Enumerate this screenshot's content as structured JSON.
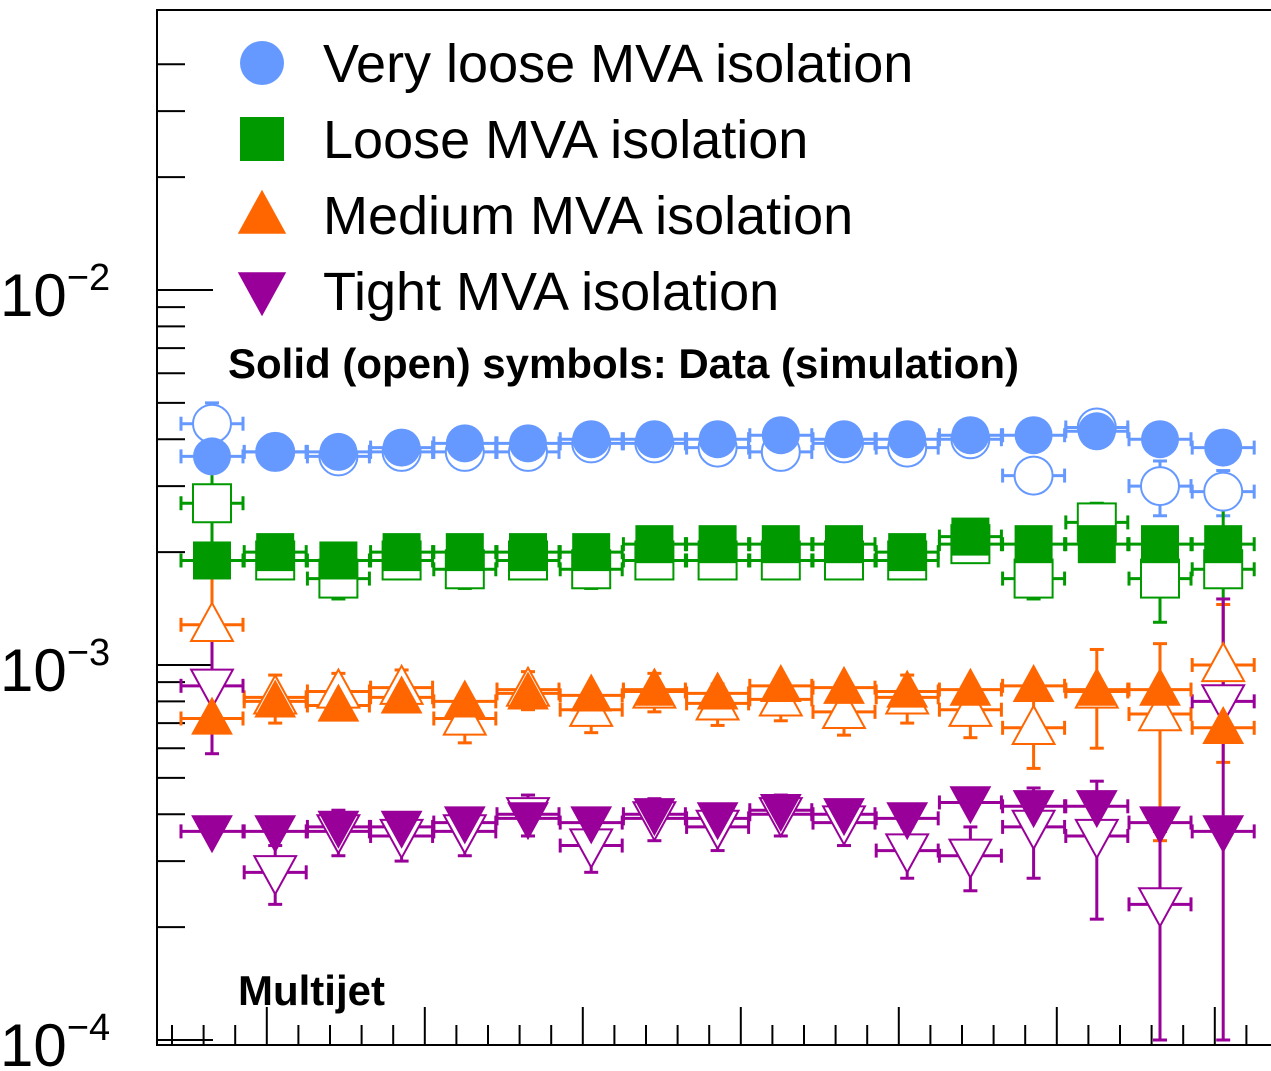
{
  "chart_data": {
    "type": "scatter",
    "yscale": "log",
    "ylim": [
      0.0001,
      0.045
    ],
    "x": [
      1,
      2,
      3,
      4,
      5,
      6,
      7,
      8,
      9,
      10,
      11,
      12,
      13,
      14,
      15,
      16,
      17
    ],
    "ytick_labels": [
      {
        "value": 0.01,
        "base": "10",
        "exp": "−2"
      },
      {
        "value": 0.001,
        "base": "10",
        "exp": "−3"
      },
      {
        "value": 0.0001,
        "base": "10",
        "exp": "−4"
      }
    ],
    "legend": {
      "placement": "top-left",
      "entries": [
        {
          "label": "Very loose MVA isolation",
          "marker": "circle",
          "color": "#6699ff"
        },
        {
          "label": "Loose MVA isolation",
          "marker": "square",
          "color": "#009900"
        },
        {
          "label": "Medium MVA isolation",
          "marker": "triangle-up",
          "color": "#ff6600"
        },
        {
          "label": "Tight MVA isolation",
          "marker": "triangle-down",
          "color": "#990099"
        }
      ]
    },
    "annotations": {
      "symbols_note": "Solid (open) symbols: Data (simulation)",
      "region": "Multijet"
    },
    "series": [
      {
        "name": "Very loose MVA isolation",
        "kind": "data",
        "color": "#6699ff",
        "marker": "circle",
        "filled": true,
        "values": [
          0.0036,
          0.0037,
          0.0037,
          0.0038,
          0.0039,
          0.0039,
          0.004,
          0.004,
          0.004,
          0.0041,
          0.004,
          0.004,
          0.0041,
          0.0041,
          0.0042,
          0.004,
          0.0038
        ]
      },
      {
        "name": "Very loose MVA isolation",
        "kind": "simulation",
        "color": "#6699ff",
        "marker": "circle",
        "filled": false,
        "values": [
          0.0044,
          0.0037,
          0.0036,
          0.0037,
          0.0037,
          0.0037,
          0.0039,
          0.0039,
          0.0038,
          0.0037,
          0.0039,
          0.0038,
          0.004,
          0.0032,
          0.0043,
          0.003,
          0.0029
        ],
        "yerr": [
          0.0006,
          0.0002,
          0.0002,
          0.0002,
          0.0002,
          0.0002,
          0.0002,
          0.0002,
          0.0002,
          0.0002,
          0.0002,
          0.0002,
          0.0002,
          0.0002,
          0.0002,
          0.0005,
          0.0004
        ]
      },
      {
        "name": "Loose MVA isolation",
        "kind": "data",
        "color": "#009900",
        "marker": "square",
        "filled": true,
        "values": [
          0.0019,
          0.002,
          0.0019,
          0.002,
          0.002,
          0.002,
          0.002,
          0.0021,
          0.0021,
          0.0021,
          0.0021,
          0.002,
          0.0022,
          0.0021,
          0.0021,
          0.0021,
          0.0021
        ]
      },
      {
        "name": "Loose MVA isolation",
        "kind": "simulation",
        "color": "#009900",
        "marker": "square",
        "filled": false,
        "values": [
          0.0027,
          0.0019,
          0.0017,
          0.0019,
          0.0018,
          0.0019,
          0.0018,
          0.0019,
          0.0019,
          0.0019,
          0.0019,
          0.0019,
          0.0021,
          0.0017,
          0.0024,
          0.0017,
          0.0018
        ],
        "yerr": [
          0.0006,
          0.0002,
          0.0002,
          0.0002,
          0.0002,
          0.0002,
          0.0002,
          0.0002,
          0.0002,
          0.0002,
          0.0002,
          0.0002,
          0.0002,
          0.0002,
          0.0003,
          0.0004,
          0.001
        ]
      },
      {
        "name": "Medium MVA isolation",
        "kind": "data",
        "color": "#ff6600",
        "marker": "triangle-up",
        "filled": true,
        "values": [
          0.00072,
          0.0008,
          0.00078,
          0.00082,
          0.0008,
          0.00084,
          0.00083,
          0.00086,
          0.00084,
          0.00088,
          0.00087,
          0.00085,
          0.00086,
          0.00088,
          0.00086,
          0.00086,
          0.00068
        ]
      },
      {
        "name": "Medium MVA isolation",
        "kind": "simulation",
        "color": "#ff6600",
        "marker": "triangle-up",
        "filled": false,
        "values": [
          0.00128,
          0.00082,
          0.00085,
          0.00087,
          0.00072,
          0.00086,
          0.00076,
          0.00085,
          0.00079,
          0.00081,
          0.00075,
          0.00082,
          0.00076,
          0.00068,
          0.00085,
          0.00074,
          0.001
        ],
        "yerr": [
          0.00045,
          0.00012,
          0.0001,
          0.0001,
          0.0001,
          0.0001,
          0.0001,
          0.0001,
          0.0001,
          0.0001,
          0.0001,
          0.00012,
          0.00012,
          0.00015,
          0.00025,
          0.0004,
          0.00045
        ]
      },
      {
        "name": "Tight MVA isolation",
        "kind": "data",
        "color": "#990099",
        "marker": "triangle-down",
        "filled": true,
        "values": [
          0.00036,
          0.00036,
          0.00037,
          0.00037,
          0.00038,
          0.00039,
          0.00038,
          0.0004,
          0.00039,
          0.00041,
          0.0004,
          0.00039,
          0.00043,
          0.00042,
          0.00042,
          0.00038,
          0.00036
        ]
      },
      {
        "name": "Tight MVA isolation",
        "kind": "simulation",
        "color": "#990099",
        "marker": "triangle-down",
        "filled": false,
        "values": [
          0.00088,
          0.00028,
          0.00036,
          0.00035,
          0.00036,
          0.0004,
          0.00033,
          0.00039,
          0.00037,
          0.0004,
          0.00038,
          0.00032,
          0.00031,
          0.00037,
          0.00035,
          0.00023,
          0.0008
        ],
        "yerr": [
          0.0003,
          5e-05,
          5e-05,
          5e-05,
          5e-05,
          5e-05,
          5e-05,
          5e-05,
          5e-05,
          5e-05,
          5e-05,
          5e-05,
          6e-05,
          0.0001,
          0.00014,
          0.00013,
          0.0007
        ]
      }
    ]
  }
}
